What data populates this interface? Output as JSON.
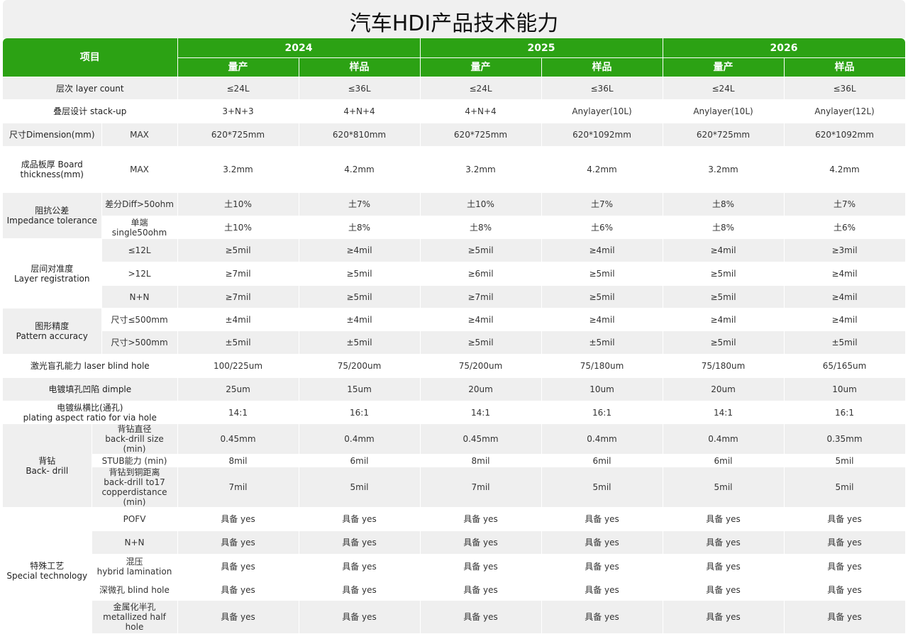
{
  "title": "汽车HDI产品技术能力",
  "header": {
    "item": "项目",
    "years": [
      "2024",
      "2025",
      "2026"
    ],
    "sub": [
      "量产",
      "样品",
      "量产",
      "样品",
      "量产",
      "样品"
    ]
  },
  "rows": {
    "layer_count": {
      "label": "层次  layer count",
      "values": [
        "≤24L",
        "≤36L",
        "≤24L",
        "≤36L",
        "≤24L",
        "≤36L"
      ]
    },
    "stackup": {
      "label": "叠层设计 stack-up",
      "values": [
        "3+N+3",
        "4+N+4",
        "4+N+4",
        "Anylayer(10L)",
        "Anylayer(10L)",
        "Anylayer(12L)"
      ]
    },
    "dimension": {
      "label": "尺寸Dimension(mm)",
      "sub": "MAX",
      "values": [
        "620*725mm",
        "620*810mm",
        "620*725mm",
        "620*1092mm",
        "620*725mm",
        "620*1092mm"
      ]
    },
    "thickness": {
      "label": "成品板厚 Board thickness(mm)",
      "sub": "MAX",
      "values": [
        "3.2mm",
        "4.2mm",
        "3.2mm",
        "4.2mm",
        "3.2mm",
        "4.2mm"
      ]
    },
    "impedance": {
      "label1": "阻抗公差",
      "label2": "Impedance tolerance",
      "diff": {
        "label": "差分Diff>50ohm",
        "values": [
          "土10%",
          "土7%",
          "土10%",
          "土7%",
          "土8%",
          "土7%"
        ]
      },
      "single": {
        "label": "单端 single50ohm",
        "values": [
          "土10%",
          "土8%",
          "土8%",
          "土6%",
          "土8%",
          "土6%"
        ]
      }
    },
    "registration": {
      "label1": "层间对准度",
      "label2": "Layer registration",
      "le12": {
        "label": "≤12L",
        "values": [
          "≥5mil",
          "≥4mil",
          "≥5mil",
          "≥4mil",
          "≥4mil",
          "≥3mil"
        ]
      },
      "gt12": {
        "label": ">12L",
        "values": [
          "≥7mil",
          "≥5mil",
          "≥6mil",
          "≥5mil",
          "≥5mil",
          "≥4mil"
        ]
      },
      "nn": {
        "label": "N+N",
        "values": [
          "≥7mil",
          "≥5mil",
          "≥7mil",
          "≥5mil",
          "≥5mil",
          "≥4mil"
        ]
      }
    },
    "pattern": {
      "label1": "图形精度",
      "label2": "Pattern accuracy",
      "le500": {
        "label": "尺寸≤500mm",
        "values": [
          "±4mil",
          "±4mil",
          "≥4mil",
          "≥4mil",
          "≥4mil",
          "≥4mil"
        ]
      },
      "gt500": {
        "label": "尺寸>500mm",
        "values": [
          "±5mil",
          "±5mil",
          "≥5mil",
          "±5mil",
          "≥5mil",
          "±5mil"
        ]
      }
    },
    "laser": {
      "label": "激光盲孔能力 laser blind hole",
      "values": [
        "100/225um",
        "75/200um",
        "75/200um",
        "75/180um",
        "75/180um",
        "65/165um"
      ]
    },
    "dimple": {
      "label": "电镀填孔凹陷 dimple",
      "values": [
        "25um",
        "15um",
        "20um",
        "10um",
        "20um",
        "10um"
      ]
    },
    "plating": {
      "label1": "电镀纵横比(通孔)",
      "label2": "plating aspect ratio for via hole",
      "values": [
        "14:1",
        "16:1",
        "14:1",
        "16:1",
        "14:1",
        "16:1"
      ]
    },
    "backdrill": {
      "label1": "背钻",
      "label2": "Back- drill",
      "size": {
        "label1": "背钻直径",
        "label2": "back-drill size (min)",
        "values": [
          "0.45mm",
          "0.4mm",
          "0.45mm",
          "0.4mm",
          "0.4mm",
          "0.35mm"
        ]
      },
      "stub": {
        "label": "STUB能力 (min)",
        "values": [
          "8mil",
          "6mil",
          "8mil",
          "6mil",
          "6mil",
          "5mil"
        ]
      },
      "copper": {
        "label1": "背钻到铜距离",
        "label2": "back-drill to17",
        "label3": "copperdistance (min)",
        "values": [
          "7mil",
          "5mil",
          "7mil",
          "5mil",
          "5mil",
          "5mil"
        ]
      }
    },
    "special": {
      "label1": "特殊工艺",
      "label2": "Special  technology",
      "pofv": {
        "label": "POFV",
        "values": [
          "具备 yes",
          "具备 yes",
          "具备 yes",
          "具备 yes",
          "具备 yes",
          "具备 yes"
        ]
      },
      "nn": {
        "label": "N+N",
        "values": [
          "具备 yes",
          "具备 yes",
          "具备 yes",
          "具备 yes",
          "具备 yes",
          "具备 yes"
        ]
      },
      "hybrid": {
        "label1": "混压",
        "label2": "hybrid lamination",
        "values": [
          "具备 yes",
          "具备 yes",
          "具备 yes",
          "具备 yes",
          "具备 yes",
          "具备 yes"
        ]
      },
      "blind": {
        "label": "深微孔 blind hole",
        "values": [
          "具备 yes",
          "具备 yes",
          "具备 yes",
          "具备 yes",
          "具备 yes",
          "具备 yes"
        ]
      },
      "half": {
        "label1": "金属化半孔",
        "label2": "metallized half hole",
        "values": [
          "具备 yes",
          "具备 yes",
          "具备 yes",
          "具备 yes",
          "具备 yes",
          "具备 yes"
        ]
      }
    }
  },
  "colors": {
    "header": "#2ca214",
    "stripe": "#efefef"
  }
}
